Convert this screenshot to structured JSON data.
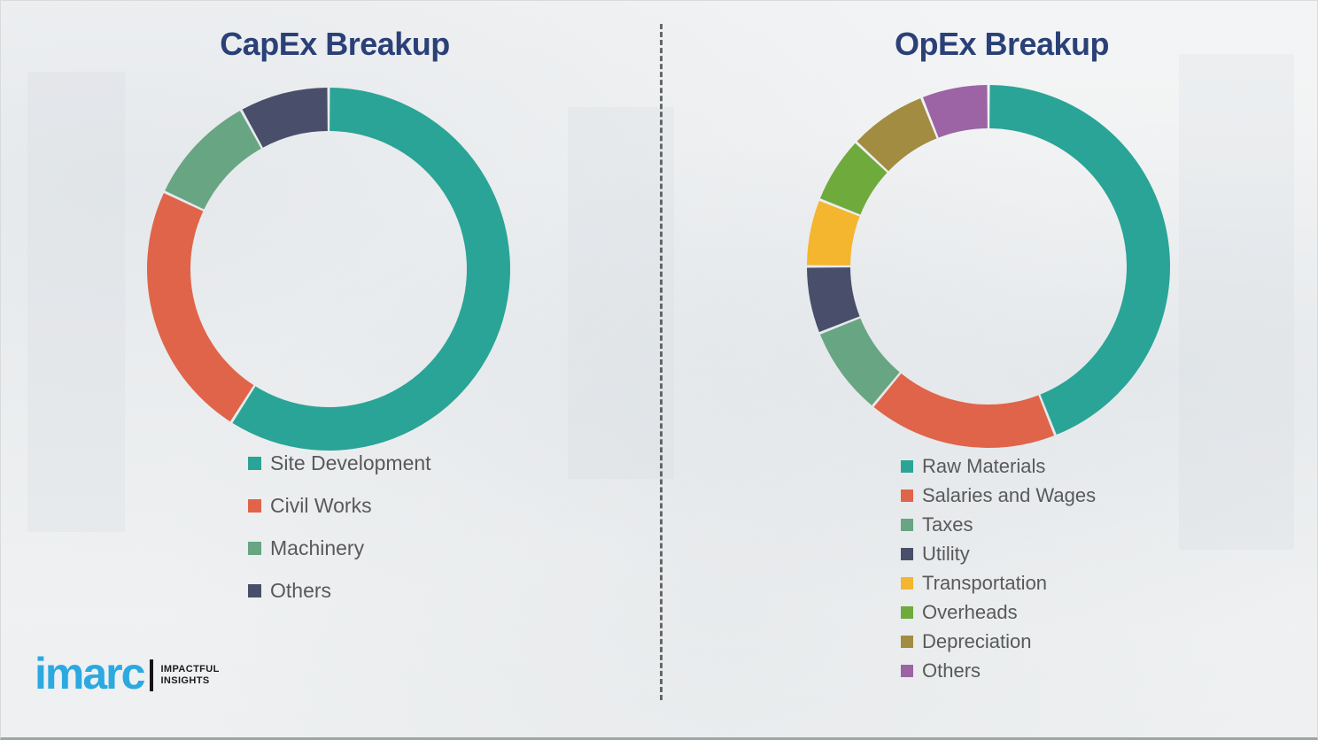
{
  "chart_data": [
    {
      "type": "pie",
      "subtype": "donut",
      "title": "CapEx Breakup",
      "categories": [
        "Site Development",
        "Civil Works",
        "Machinery",
        "Others"
      ],
      "values": [
        59,
        23,
        10,
        8
      ],
      "value_unit": "percent (estimated from arc angles; no labels shown)",
      "colors": [
        "#2AA496",
        "#E0644A",
        "#68A583",
        "#494F6A"
      ],
      "start_angle": "top",
      "direction": "clockwise",
      "legend_position": "below-left",
      "data_labels": "none"
    },
    {
      "type": "pie",
      "subtype": "donut",
      "title": "OpEx Breakup",
      "categories": [
        "Raw Materials",
        "Salaries and Wages",
        "Taxes",
        "Utility",
        "Transportation",
        "Overheads",
        "Depreciation",
        "Others"
      ],
      "values": [
        44,
        17,
        8,
        6,
        6,
        6,
        7,
        6
      ],
      "value_unit": "percent (estimated from arc angles; no labels shown)",
      "colors": [
        "#2AA496",
        "#E0644A",
        "#68A583",
        "#494F6A",
        "#F4B52F",
        "#6FAA3C",
        "#A18C41",
        "#9C64A4"
      ],
      "start_angle": "top",
      "direction": "clockwise",
      "legend_position": "below-left",
      "data_labels": "none"
    }
  ],
  "logo": {
    "brand": "imarc",
    "tagline_line1": "IMPACTFUL",
    "tagline_line2": "INSIGHTS"
  },
  "colors": {
    "title_text": "#2A4077",
    "legend_text": "#595959",
    "divider": "#4F4F4F",
    "logo_blue": "#2BA9E1",
    "logo_dark": "#141414",
    "background": "#F1F2F3"
  }
}
